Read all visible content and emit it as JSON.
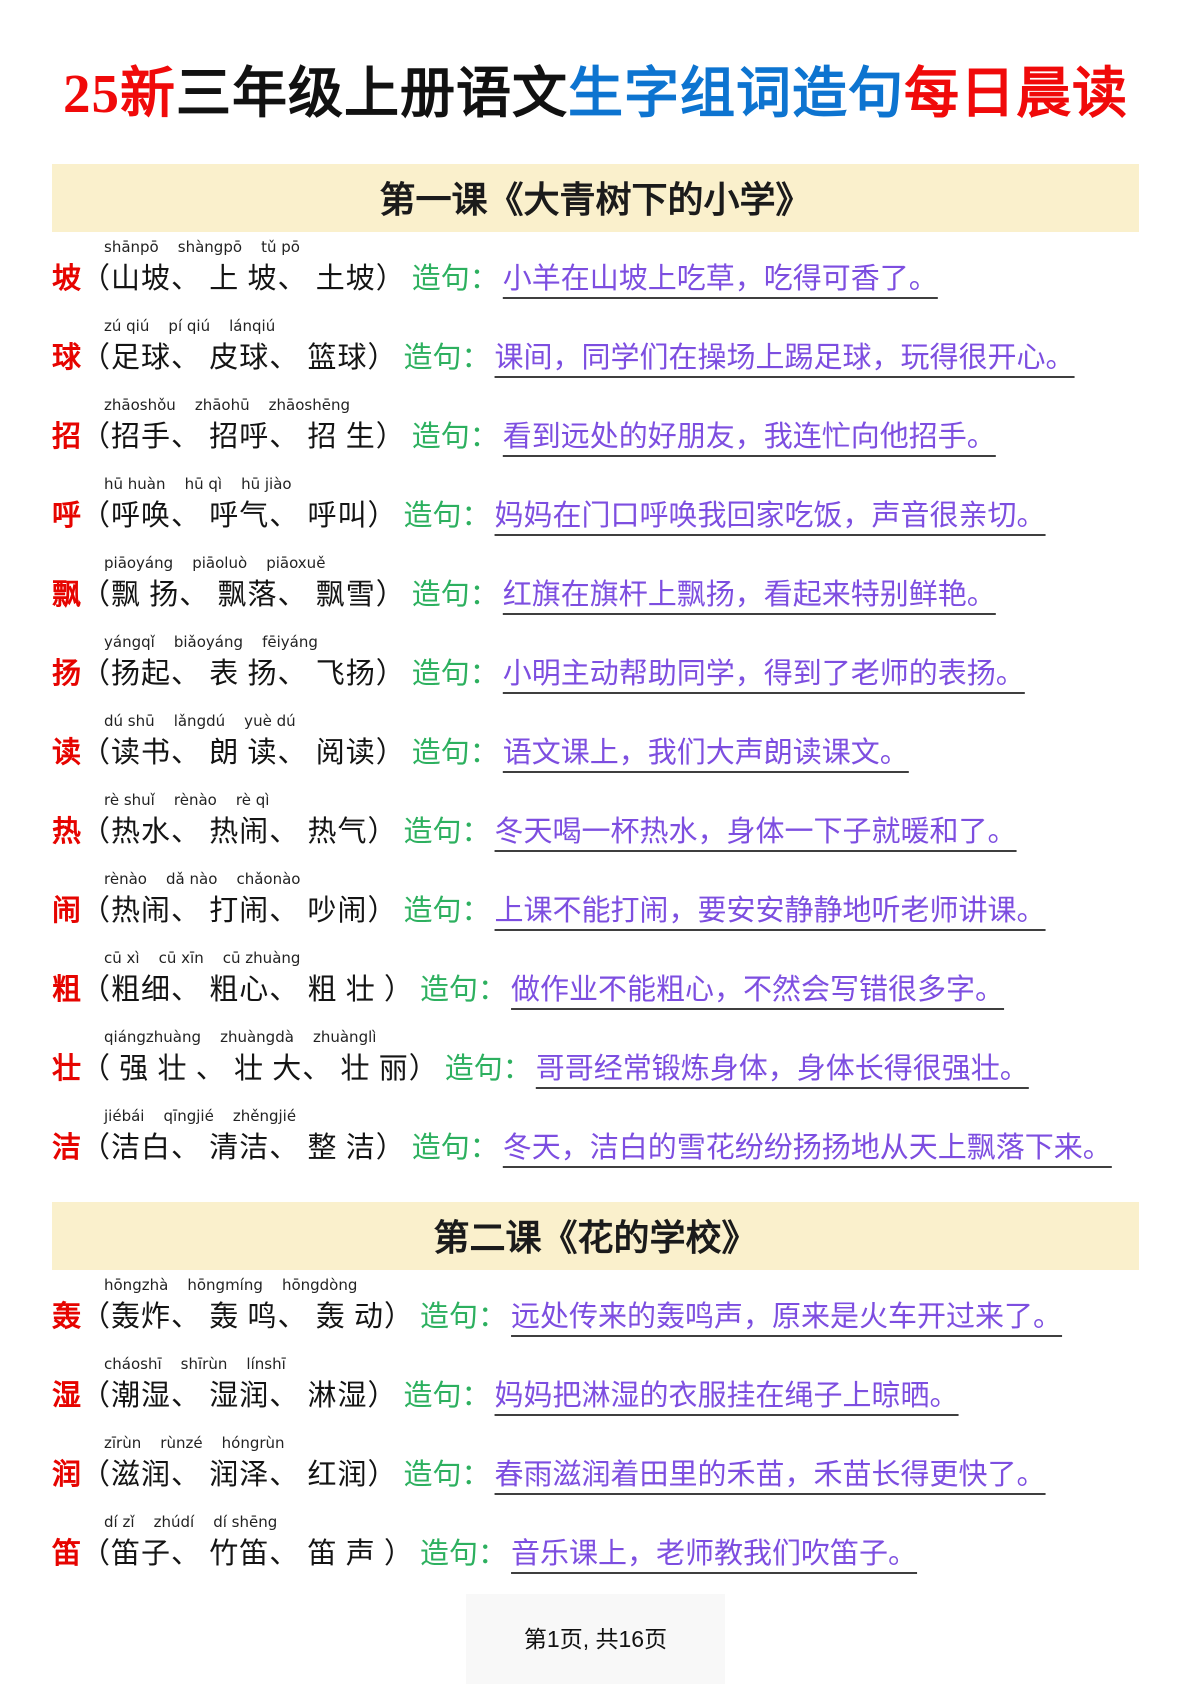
{
  "title": {
    "segments": [
      {
        "text": "25新",
        "color": "#f00a0a"
      },
      {
        "text": "三年级上册语文",
        "color": "#111111"
      },
      {
        "text": "生字组词造句",
        "color": "#0d74d0"
      },
      {
        "text": "每日晨读",
        "color": "#f00a0a"
      }
    ]
  },
  "colors": {
    "title_red": "#f00a0a",
    "title_blue": "#0d74d0",
    "char_red": "#e60400",
    "zaoju_green": "#2db05f",
    "sentence_purple": "#7d4ee0",
    "underline": "#3f3f3f",
    "section_band_bg": "#faf0cc",
    "footer_box_bg": "#f8f8f8"
  },
  "sections": [
    {
      "title": "第一课《大青树下的小学》",
      "rows": [
        {
          "pinyin": "shānpō    shàngpō    tǔ pō",
          "char": "坡",
          "words": "（山坡、 上 坡、 土坡）",
          "zaoju_label": "造句：",
          "sentence": "小羊在山坡上吃草，吃得可香了。"
        },
        {
          "pinyin": "zú qiú    pí qiú    lánqiú",
          "char": "球",
          "words": "（足球、 皮球、 篮球）",
          "zaoju_label": "造句：",
          "sentence": "课间，同学们在操场上踢足球，玩得很开心。"
        },
        {
          "pinyin": "zhāoshǒu    zhāohū    zhāoshēng",
          "char": "招",
          "words": "（招手、 招呼、 招 生）",
          "zaoju_label": "造句：",
          "sentence": "看到远处的好朋友，我连忙向他招手。"
        },
        {
          "pinyin": "hū huàn    hū qì    hū jiào",
          "char": "呼",
          "words": "（呼唤、 呼气、 呼叫）",
          "zaoju_label": "造句：",
          "sentence": "妈妈在门口呼唤我回家吃饭，声音很亲切。"
        },
        {
          "pinyin": "piāoyáng    piāoluò    piāoxuě",
          "char": "飘",
          "words": "（飘 扬、 飘落、 飘雪）",
          "zaoju_label": "造句：",
          "sentence": "红旗在旗杆上飘扬，看起来特别鲜艳。"
        },
        {
          "pinyin": "yángqǐ    biǎoyáng    fēiyáng",
          "char": "扬",
          "words": "（扬起、 表 扬、 飞扬）",
          "zaoju_label": "造句：",
          "sentence": "小明主动帮助同学，得到了老师的表扬。"
        },
        {
          "pinyin": "dú shū    lǎngdú    yuè dú",
          "char": "读",
          "words": "（读书、 朗 读、 阅读）",
          "zaoju_label": "造句：",
          "sentence": "语文课上，我们大声朗读课文。"
        },
        {
          "pinyin": "rè shuǐ    rènào    rè qì",
          "char": "热",
          "words": "（热水、 热闹、 热气）",
          "zaoju_label": "造句：",
          "sentence": "冬天喝一杯热水，身体一下子就暖和了。"
        },
        {
          "pinyin": "rènào    dǎ nào    chǎonào",
          "char": "闹",
          "words": "（热闹、 打闹、 吵闹）",
          "zaoju_label": "造句：",
          "sentence": "上课不能打闹，要安安静静地听老师讲课。"
        },
        {
          "pinyin": "cū xì    cū xīn    cū zhuàng",
          "char": "粗",
          "words": "（粗细、 粗心、 粗 壮 ）",
          "zaoju_label": "造句：",
          "sentence": "做作业不能粗心，不然会写错很多字。"
        },
        {
          "pinyin": "qiángzhuàng    zhuàngdà    zhuànglì",
          "char": "壮",
          "words": "（ 强 壮 、 壮 大、 壮 丽）",
          "zaoju_label": "造句：",
          "sentence": "哥哥经常锻炼身体，身体长得很强壮。"
        },
        {
          "pinyin": "jiébái    qīngjié    zhěngjié",
          "char": "洁",
          "words": "（洁白、 清洁、 整 洁）",
          "zaoju_label": "造句：",
          "sentence": "冬天，洁白的雪花纷纷扬扬地从天上飘落下来。"
        }
      ]
    },
    {
      "title": "第二课《花的学校》",
      "rows": [
        {
          "pinyin": "hōngzhà    hōngmíng    hōngdòng",
          "char": "轰",
          "words": "（轰炸、 轰 鸣、 轰 动）",
          "zaoju_label": "造句：",
          "sentence": "远处传来的轰鸣声，原来是火车开过来了。"
        },
        {
          "pinyin": "cháoshī    shīrùn    línshī",
          "char": "湿",
          "words": "（潮湿、 湿润、 淋湿）",
          "zaoju_label": "造句：",
          "sentence": "妈妈把淋湿的衣服挂在绳子上晾晒。"
        },
        {
          "pinyin": "zīrùn    rùnzé    hóngrùn",
          "char": "润",
          "words": "（滋润、 润泽、 红润）",
          "zaoju_label": "造句：",
          "sentence": "春雨滋润着田里的禾苗，禾苗长得更快了。"
        },
        {
          "pinyin": "dí zǐ    zhúdí    dí shēng",
          "char": "笛",
          "words": "（笛子、 竹笛、 笛 声 ）",
          "zaoju_label": "造句：",
          "sentence": "音乐课上，老师教我们吹笛子。"
        }
      ]
    }
  ],
  "footer": {
    "page_indicator": "第1页, 共16页"
  }
}
